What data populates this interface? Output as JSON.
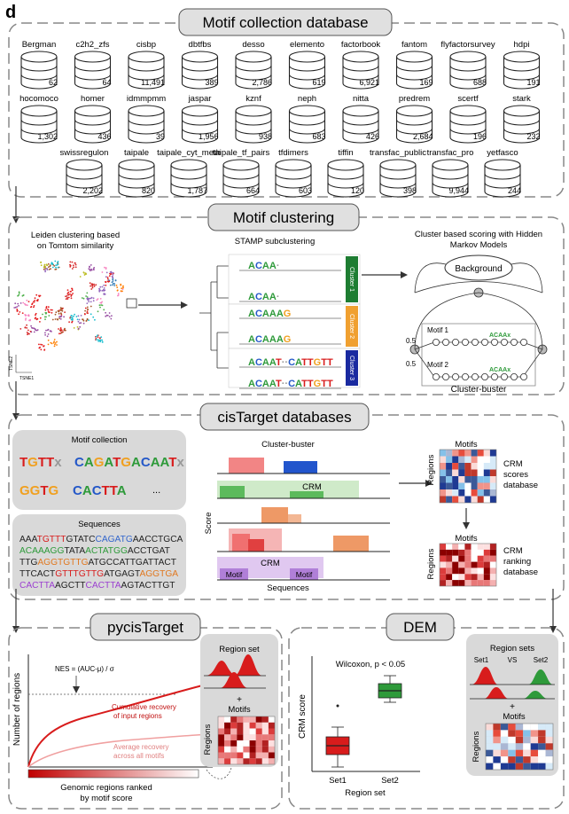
{
  "panel_letter": "d",
  "colors": {
    "green": "#2e9a3a",
    "orange": "#f0a020",
    "blue": "#1a3aa0",
    "red": "#d81c1c",
    "grey_panel": "#d9d9d9"
  },
  "motif_db": {
    "title": "Motif collection database",
    "rows": [
      [
        {
          "name": "Bergman",
          "count": "62"
        },
        {
          "name": "c2h2_zfs",
          "count": "64"
        },
        {
          "name": "cisbp",
          "count": "11,491"
        },
        {
          "name": "dbtfbs",
          "count": "389"
        },
        {
          "name": "desso",
          "count": "2,786"
        },
        {
          "name": "elemento",
          "count": "619"
        },
        {
          "name": "factorbook",
          "count": "6,921"
        },
        {
          "name": "fantom",
          "count": "169"
        },
        {
          "name": "flyfactorsurvey",
          "count": "688"
        },
        {
          "name": "hdpi",
          "count": "191"
        }
      ],
      [
        {
          "name": "hocomoco",
          "count": "1,302"
        },
        {
          "name": "homer",
          "count": "436"
        },
        {
          "name": "idmmpmm",
          "count": "39"
        },
        {
          "name": "jaspar",
          "count": "1,956"
        },
        {
          "name": "kznf",
          "count": "938"
        },
        {
          "name": "neph",
          "count": "683"
        },
        {
          "name": "nitta",
          "count": "426"
        },
        {
          "name": "predrem",
          "count": "2,684"
        },
        {
          "name": "scertf",
          "count": "196"
        },
        {
          "name": "stark",
          "count": "232"
        }
      ],
      [
        {
          "name": "swissregulon",
          "count": "2,202"
        },
        {
          "name": "taipale",
          "count": "820"
        },
        {
          "name": "taipale_cyt_meth",
          "count": "1,787"
        },
        {
          "name": "taipale_tf_pairs",
          "count": "664"
        },
        {
          "name": "tfdimers",
          "count": "603"
        },
        {
          "name": "tiffin",
          "count": "120"
        },
        {
          "name": "transfac_public",
          "count": "398"
        },
        {
          "name": "transfac_pro",
          "count": "9,944"
        },
        {
          "name": "yetfasco",
          "count": "244"
        }
      ]
    ]
  },
  "clustering": {
    "title": "Motif clustering",
    "leiden_label": "Leiden clustering  based on Tomtom similarity",
    "tsne1": "TSNE1",
    "tsne2": "TSNE2",
    "stamp_label": "STAMP subclustering",
    "clusters": [
      {
        "label": "Cluster 1",
        "logos": [
          "ACAAx",
          "ACAAx"
        ]
      },
      {
        "label": "Cluster 2",
        "logos": [
          "ACAAAG",
          "ACAAAG"
        ]
      },
      {
        "label": "Cluster 3",
        "logos": [
          "ACAATxxCATTGTT",
          "ACAATxxCATTGTT"
        ]
      }
    ],
    "hmm_label": "Cluster based scoring with Hidden Markov Models",
    "background": "Background",
    "motif1": "Motif 1",
    "motif2": "Motif 2",
    "p1": "0.5",
    "p2": "0.5",
    "logo_small": "ACAAx",
    "cluster_buster": "Cluster-buster"
  },
  "cistarget": {
    "title": "cisTarget databases",
    "motif_collection_label": "Motif collection",
    "logos_row1": [
      "TGTTx",
      "CAGATG",
      "ACAATx"
    ],
    "logos_row2": [
      "GGTG",
      "CACTTA"
    ],
    "ellipsis": "...",
    "sequences_label": "Sequences",
    "sequence_lines": [
      [
        {
          "t": "AAA",
          "c": "#222"
        },
        {
          "t": "TGTTT",
          "c": "#d81c1c"
        },
        {
          "t": "GTATC",
          "c": "#222"
        },
        {
          "t": "CAGATG",
          "c": "#3366cc"
        },
        {
          "t": "AACCTGCA",
          "c": "#222"
        }
      ],
      [
        {
          "t": "ACAAAGG",
          "c": "#2e9a3a"
        },
        {
          "t": "TATA",
          "c": "#222"
        },
        {
          "t": "ACTATGG",
          "c": "#2e9a3a"
        },
        {
          "t": "ACCTGAT",
          "c": "#222"
        }
      ],
      [
        {
          "t": "TTG",
          "c": "#222"
        },
        {
          "t": "AGGTGTTG",
          "c": "#e07820"
        },
        {
          "t": "ATGCCATTGATTACT",
          "c": "#222"
        }
      ],
      [
        {
          "t": "TTCACT",
          "c": "#222"
        },
        {
          "t": "GTTTGTTG",
          "c": "#d81c1c"
        },
        {
          "t": "ATGAGT",
          "c": "#222"
        },
        {
          "t": "AGGTGA",
          "c": "#e07820"
        }
      ],
      [
        {
          "t": "CACTTA",
          "c": "#9b3fd0"
        },
        {
          "t": "AGCTT",
          "c": "#222"
        },
        {
          "t": "CACTTA",
          "c": "#9b3fd0"
        },
        {
          "t": "AGTACTTGT",
          "c": "#222"
        }
      ]
    ],
    "cb_label": "Cluster-buster",
    "score_label": "Score",
    "crm1": "CRM",
    "crm2": "CRM",
    "motif_a": "Motif",
    "motif_b": "Motif",
    "sequences_axis": "Sequences",
    "matrix1_top": "Motifs",
    "matrix1_side": "Regions",
    "matrix1_desc": [
      "CRM",
      "scores",
      "database"
    ],
    "matrix2_top": "Motifs",
    "matrix2_side": "Regions",
    "matrix2_desc": [
      "CRM",
      "ranking",
      "database"
    ]
  },
  "pycistarget": {
    "title": "pycisTarget",
    "nes_formula": "NES = (AUC-μ) / σ",
    "ylabel": "Number of regions",
    "cumulative": [
      "Cumulative recovery",
      "of input regions"
    ],
    "average": [
      "Average recovery",
      "across all motifs"
    ],
    "xlabel": [
      "Genomic regions ranked",
      "by motif score"
    ],
    "region_set": "Region set",
    "plus": "+",
    "motifs": "Motifs",
    "regions": "Regions"
  },
  "dem": {
    "title": "DEM",
    "test_label": "Wilcoxon, p < 0.05",
    "ylabel": "CRM score",
    "xlabel": "Region set",
    "set1": "Set1",
    "set2": "Set2",
    "region_sets": "Region sets",
    "side_set1": "Set1",
    "vs": "VS",
    "side_set2": "Set2",
    "plus": "+",
    "motifs": "Motifs",
    "regions": "Regions"
  }
}
